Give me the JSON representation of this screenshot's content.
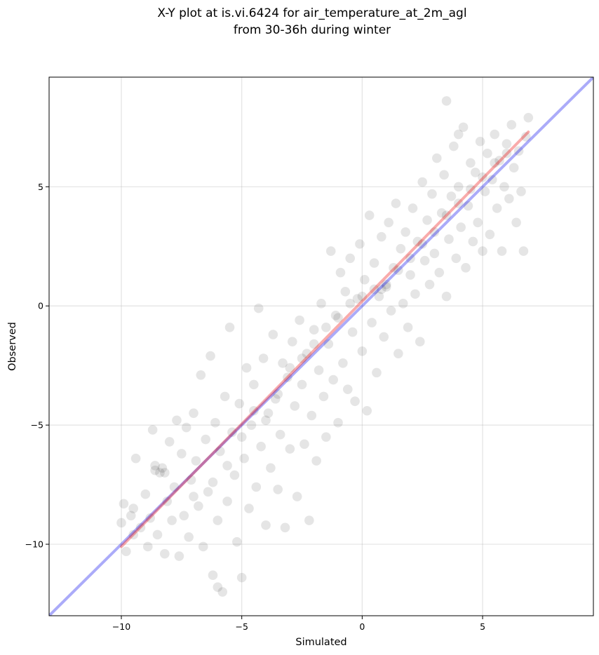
{
  "chart_data": {
    "type": "scatter",
    "title_line1": "X-Y plot at is.vi.6424 for air_temperature_at_2m_agl",
    "title_line2": "from 30-36h during winter",
    "xlabel": "Simulated",
    "ylabel": "Observed",
    "xlim": [
      -13.0,
      9.6
    ],
    "ylim": [
      -13.0,
      9.6
    ],
    "xticks": [
      -10,
      -5,
      0,
      5
    ],
    "yticks": [
      -10,
      -5,
      0,
      5
    ],
    "xtick_labels": [
      "−10",
      "−5",
      "0",
      "5"
    ],
    "ytick_labels": [
      "−10",
      "−5",
      "0",
      "5"
    ],
    "grid": true,
    "point_color": "#000000",
    "point_alpha": 0.1,
    "identity_line": {
      "x": [
        -13.0,
        9.6
      ],
      "y": [
        -13.0,
        9.6
      ],
      "color": "#0000ee",
      "alpha": 0.33
    },
    "regression_line": {
      "x": [
        -10.0,
        6.9
      ],
      "y": [
        -10.1,
        7.3
      ],
      "color": "#ee0000",
      "alpha": 0.33
    },
    "points": [
      [
        -10.0,
        -9.1
      ],
      [
        -9.9,
        -8.3
      ],
      [
        -9.8,
        -10.3
      ],
      [
        -9.6,
        -8.8
      ],
      [
        -9.5,
        -9.6
      ],
      [
        -9.4,
        -6.4
      ],
      [
        -9.2,
        -9.3
      ],
      [
        -9.0,
        -7.9
      ],
      [
        -8.9,
        -10.1
      ],
      [
        -8.8,
        -8.9
      ],
      [
        -8.7,
        -5.2
      ],
      [
        -8.6,
        -6.7
      ],
      [
        -8.5,
        -9.6
      ],
      [
        -8.4,
        -7.0
      ],
      [
        -8.3,
        -6.8
      ],
      [
        -8.2,
        -10.4
      ],
      [
        -8.1,
        -8.2
      ],
      [
        -8.0,
        -5.7
      ],
      [
        -7.9,
        -9.0
      ],
      [
        -7.8,
        -7.6
      ],
      [
        -7.7,
        -4.8
      ],
      [
        -7.6,
        -10.5
      ],
      [
        -7.5,
        -6.2
      ],
      [
        -7.4,
        -8.8
      ],
      [
        -7.3,
        -5.1
      ],
      [
        -7.2,
        -9.7
      ],
      [
        -7.1,
        -7.3
      ],
      [
        -7.0,
        -4.5
      ],
      [
        -6.9,
        -6.5
      ],
      [
        -6.8,
        -8.4
      ],
      [
        -6.7,
        -2.9
      ],
      [
        -6.6,
        -10.1
      ],
      [
        -6.5,
        -5.6
      ],
      [
        -6.4,
        -7.8
      ],
      [
        -6.3,
        -2.1
      ],
      [
        -6.2,
        -11.3
      ],
      [
        -6.1,
        -4.9
      ],
      [
        -6.0,
        -9.0
      ],
      [
        -5.9,
        -6.1
      ],
      [
        -5.8,
        -12.0
      ],
      [
        -5.7,
        -3.8
      ],
      [
        -5.6,
        -8.2
      ],
      [
        -5.5,
        -0.9
      ],
      [
        -5.4,
        -5.3
      ],
      [
        -5.3,
        -7.1
      ],
      [
        -5.2,
        -9.9
      ],
      [
        -5.1,
        -4.1
      ],
      [
        -5.0,
        -11.4
      ],
      [
        -4.9,
        -6.4
      ],
      [
        -4.8,
        -2.6
      ],
      [
        -4.7,
        -8.5
      ],
      [
        -4.6,
        -5.0
      ],
      [
        -4.5,
        -3.3
      ],
      [
        -4.4,
        -7.6
      ],
      [
        -4.3,
        -0.1
      ],
      [
        -4.2,
        -5.9
      ],
      [
        -4.1,
        -2.2
      ],
      [
        -4.0,
        -9.2
      ],
      [
        -3.9,
        -4.5
      ],
      [
        -3.8,
        -6.8
      ],
      [
        -3.7,
        -1.2
      ],
      [
        -3.6,
        -3.9
      ],
      [
        -3.5,
        -7.7
      ],
      [
        -3.4,
        -5.4
      ],
      [
        -3.3,
        -2.4
      ],
      [
        -3.2,
        -9.3
      ],
      [
        -3.1,
        -3.0
      ],
      [
        -3.0,
        -6.0
      ],
      [
        -2.9,
        -1.5
      ],
      [
        -2.8,
        -4.2
      ],
      [
        -2.7,
        -8.0
      ],
      [
        -2.6,
        -0.6
      ],
      [
        -2.5,
        -3.3
      ],
      [
        -2.4,
        -5.8
      ],
      [
        -2.3,
        -2.0
      ],
      [
        -2.2,
        -9.0
      ],
      [
        -2.1,
        -4.6
      ],
      [
        -2.0,
        -1.0
      ],
      [
        -1.9,
        -6.5
      ],
      [
        -1.8,
        -2.7
      ],
      [
        -1.7,
        0.1
      ],
      [
        -1.6,
        -3.8
      ],
      [
        -1.5,
        -5.5
      ],
      [
        -1.4,
        -1.6
      ],
      [
        -1.3,
        2.3
      ],
      [
        -1.2,
        -3.1
      ],
      [
        -1.1,
        -0.4
      ],
      [
        -1.0,
        -4.9
      ],
      [
        -0.9,
        1.4
      ],
      [
        -0.8,
        -2.4
      ],
      [
        -0.7,
        0.6
      ],
      [
        -0.6,
        -3.5
      ],
      [
        -0.5,
        2.0
      ],
      [
        -0.4,
        -1.1
      ],
      [
        -0.3,
        -4.0
      ],
      [
        -0.2,
        0.3
      ],
      [
        -0.1,
        2.6
      ],
      [
        0.0,
        -1.9
      ],
      [
        0.1,
        1.1
      ],
      [
        0.2,
        -4.4
      ],
      [
        0.3,
        3.8
      ],
      [
        0.4,
        -0.7
      ],
      [
        0.5,
        1.8
      ],
      [
        0.6,
        -2.8
      ],
      [
        0.7,
        0.4
      ],
      [
        0.8,
        2.9
      ],
      [
        0.9,
        -1.3
      ],
      [
        1.0,
        0.8
      ],
      [
        1.1,
        3.5
      ],
      [
        1.2,
        -0.2
      ],
      [
        1.3,
        1.6
      ],
      [
        1.4,
        4.3
      ],
      [
        1.5,
        -2.0
      ],
      [
        1.6,
        2.4
      ],
      [
        1.7,
        0.1
      ],
      [
        1.8,
        3.1
      ],
      [
        1.9,
        -0.9
      ],
      [
        2.0,
        1.3
      ],
      [
        2.1,
        4.1
      ],
      [
        2.2,
        0.5
      ],
      [
        2.3,
        2.7
      ],
      [
        2.4,
        -1.5
      ],
      [
        2.5,
        5.2
      ],
      [
        2.6,
        1.9
      ],
      [
        2.7,
        3.6
      ],
      [
        2.8,
        0.9
      ],
      [
        2.9,
        4.7
      ],
      [
        3.0,
        2.2
      ],
      [
        3.1,
        6.2
      ],
      [
        3.2,
        1.4
      ],
      [
        3.3,
        3.9
      ],
      [
        3.4,
        5.5
      ],
      [
        3.5,
        0.4
      ],
      [
        3.6,
        2.8
      ],
      [
        3.7,
        4.6
      ],
      [
        3.8,
        6.7
      ],
      [
        3.9,
        2.0
      ],
      [
        4.0,
        5.0
      ],
      [
        4.1,
        3.3
      ],
      [
        4.2,
        7.5
      ],
      [
        4.3,
        1.6
      ],
      [
        4.4,
        4.2
      ],
      [
        4.5,
        6.0
      ],
      [
        4.6,
        2.7
      ],
      [
        4.7,
        5.6
      ],
      [
        4.8,
        3.5
      ],
      [
        4.9,
        6.9
      ],
      [
        5.0,
        2.3
      ],
      [
        5.1,
        4.8
      ],
      [
        5.2,
        6.4
      ],
      [
        5.3,
        3.0
      ],
      [
        5.4,
        5.3
      ],
      [
        5.5,
        7.2
      ],
      [
        5.6,
        4.1
      ],
      [
        5.7,
        6.1
      ],
      [
        5.8,
        2.3
      ],
      [
        5.9,
        5.0
      ],
      [
        6.0,
        6.8
      ],
      [
        6.1,
        4.5
      ],
      [
        6.2,
        7.6
      ],
      [
        6.3,
        5.8
      ],
      [
        6.4,
        3.5
      ],
      [
        6.5,
        6.5
      ],
      [
        6.6,
        4.8
      ],
      [
        6.7,
        2.3
      ],
      [
        6.8,
        7.1
      ],
      [
        6.9,
        7.9
      ],
      [
        3.5,
        8.6
      ],
      [
        4.0,
        7.2
      ],
      [
        -6.0,
        -11.8
      ],
      [
        -9.5,
        -8.5
      ],
      [
        -8.6,
        -6.9
      ],
      [
        -8.2,
        -7.0
      ],
      [
        -7.0,
        -8.0
      ],
      [
        -6.2,
        -7.4
      ],
      [
        -5.6,
        -6.7
      ],
      [
        -5.0,
        -5.5
      ],
      [
        -4.5,
        -4.4
      ],
      [
        -4.0,
        -4.8
      ],
      [
        -3.5,
        -3.7
      ],
      [
        -3.0,
        -2.6
      ],
      [
        -2.5,
        -2.2
      ],
      [
        -2.0,
        -1.6
      ],
      [
        -1.5,
        -0.9
      ],
      [
        -1.0,
        -0.5
      ],
      [
        -0.5,
        0.1
      ],
      [
        0.0,
        0.4
      ],
      [
        0.5,
        0.7
      ],
      [
        0.8,
        0.7
      ],
      [
        1.0,
        0.9
      ],
      [
        1.5,
        1.5
      ],
      [
        2.0,
        2.0
      ],
      [
        2.5,
        2.6
      ],
      [
        3.0,
        3.1
      ],
      [
        3.5,
        3.8
      ],
      [
        4.0,
        4.3
      ],
      [
        4.5,
        4.9
      ],
      [
        5.0,
        5.4
      ],
      [
        5.5,
        6.0
      ],
      [
        6.0,
        6.4
      ]
    ]
  }
}
